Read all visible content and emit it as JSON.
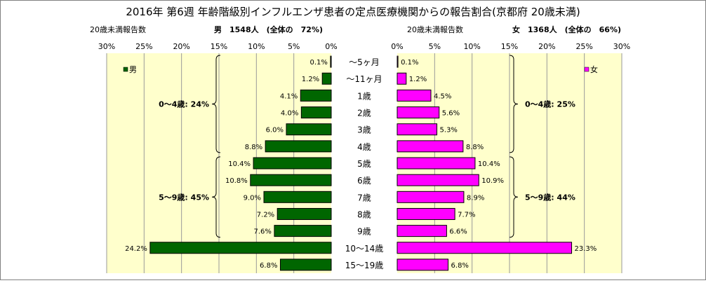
{
  "chart_data": {
    "type": "bar",
    "orientation": "horizontal-butterfly",
    "title": "2016年 第6週 年齢階級別インフルエンザ患者の定点医療機関からの報告割合(京都府 20歳未満)",
    "categories": [
      "～5ヶ月",
      "～11ヶ月",
      "1歳",
      "2歳",
      "3歳",
      "4歳",
      "5歳",
      "6歳",
      "7歳",
      "8歳",
      "9歳",
      "10～14歳",
      "15～19歳"
    ],
    "xlim": [
      0,
      30
    ],
    "ticks": [
      "0%",
      "5%",
      "10%",
      "15%",
      "20%",
      "25%",
      "30%"
    ],
    "grid": true,
    "series": [
      {
        "name": "男",
        "side": "left",
        "color": "#006600",
        "panel_color": "#ffffcc",
        "left_header": "20歳未満報告数",
        "summary": "男　1548人　(全体の　72%)",
        "values": [
          0.1,
          1.2,
          4.1,
          4.0,
          6.0,
          8.8,
          10.4,
          10.8,
          9.0,
          7.2,
          7.6,
          24.2,
          6.8
        ],
        "labels": [
          "0.1%",
          "1.2%",
          "4.1%",
          "4.0%",
          "6.0%",
          "8.8%",
          "10.4%",
          "10.8%",
          "9.0%",
          "7.2%",
          "7.6%",
          "24.2%",
          "6.8%"
        ],
        "groups": [
          {
            "label": "0～4歳: 24%",
            "from": 0,
            "to": 5
          },
          {
            "label": "5～9歳: 45%",
            "from": 6,
            "to": 10
          }
        ]
      },
      {
        "name": "女",
        "side": "right",
        "color": "#ff00ff",
        "panel_color": "#ffffcc",
        "left_header": "20歳未満報告数",
        "summary": "女　1368人　(全体の　66%)",
        "values": [
          0.1,
          1.2,
          4.5,
          5.6,
          5.3,
          8.8,
          10.4,
          10.9,
          8.9,
          7.7,
          6.6,
          23.3,
          6.8
        ],
        "labels": [
          "0.1%",
          "1.2%",
          "4.5%",
          "5.6%",
          "5.3%",
          "8.8%",
          "10.4%",
          "10.9%",
          "8.9%",
          "7.7%",
          "6.6%",
          "23.3%",
          "6.8%"
        ],
        "groups": [
          {
            "label": "0～4歳: 25%",
            "from": 0,
            "to": 5
          },
          {
            "label": "5～9歳: 44%",
            "from": 6,
            "to": 10
          }
        ]
      }
    ]
  }
}
